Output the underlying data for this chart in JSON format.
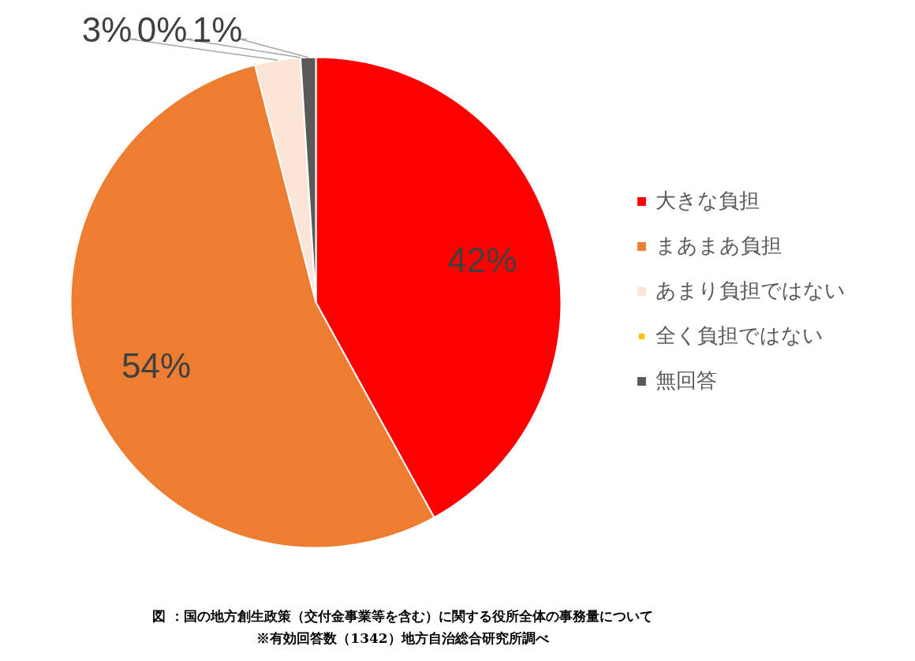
{
  "chart_data": {
    "type": "pie",
    "categories": [
      "大きな負担",
      "まあまあ負担",
      "あまり負担ではない",
      "全く負担ではない",
      "無回答"
    ],
    "values": [
      42,
      54,
      3,
      0,
      1
    ],
    "value_labels": [
      "42%",
      "54%",
      "3%",
      "0%",
      "1%"
    ],
    "colors": [
      "#ff0000",
      "#ed7d31",
      "#fbe5d6",
      "#ffc000",
      "#595959"
    ],
    "legend": "right",
    "annotations": [
      "図 ：国の地方創生政策（交付金事業等を含む）に関する役所全体の事務量について",
      "※有効回答数（1342）地方自治総合研究所調べ"
    ]
  }
}
